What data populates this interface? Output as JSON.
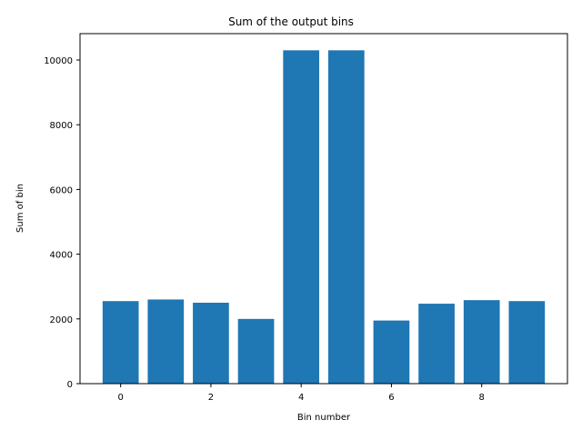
{
  "chart_data": {
    "type": "bar",
    "title": "Sum of the output bins",
    "xlabel": "Bin number",
    "ylabel": "Sum of bin",
    "x": [
      0,
      1,
      2,
      3,
      4,
      5,
      6,
      7,
      8,
      9
    ],
    "values": [
      2550,
      2600,
      2500,
      2000,
      10300,
      10300,
      1950,
      2470,
      2580,
      2550
    ],
    "xlim": [
      -0.9,
      9.9
    ],
    "ylim": [
      0,
      10815
    ],
    "xticks": [
      0,
      2,
      4,
      6,
      8
    ],
    "yticks": [
      0,
      2000,
      4000,
      6000,
      8000,
      10000
    ],
    "grid": false,
    "bar_color": "#1f77b4"
  }
}
